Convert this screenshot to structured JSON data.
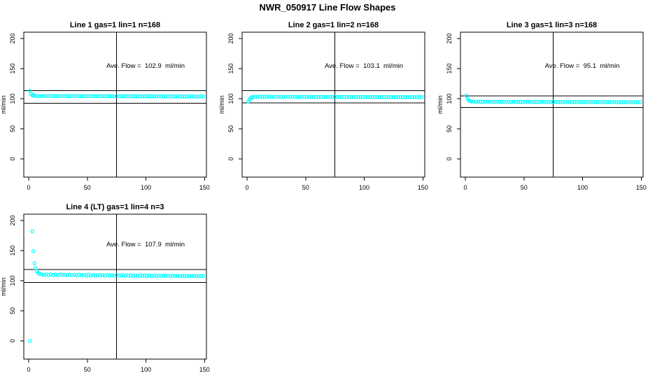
{
  "figure": {
    "title": "NWR_050917  Line Flow Shapes"
  },
  "style": {
    "point_color": "#00FFFF",
    "axis_color": "#000000",
    "background": "#FFFFFF"
  },
  "chart_data": [
    {
      "type": "scatter",
      "title": "Line 1 gas=1 lin=1 n=168",
      "gas": 1,
      "lin": 1,
      "n": 168,
      "annotation": "Ave. Flow =  102.9  ml/min",
      "ave_flow_ml_min": 102.9,
      "ylabel": "ml/min",
      "x_ticks": [
        0,
        50,
        100,
        150
      ],
      "y_ticks": [
        0,
        50,
        100,
        150,
        200
      ],
      "xlim": [
        0,
        150
      ],
      "ylim": [
        0,
        200
      ],
      "grid": false,
      "legend": "none",
      "vline_x": 75,
      "hlines": [
        113.2,
        92.6
      ],
      "points": [
        [
          1,
          113
        ],
        [
          2,
          108
        ],
        [
          3,
          106
        ],
        [
          4,
          105.2
        ],
        [
          5,
          104.8
        ],
        [
          7,
          104.7
        ],
        [
          9,
          104.4
        ],
        [
          11,
          104.5
        ],
        [
          13,
          104.3
        ],
        [
          15,
          104.6
        ],
        [
          17,
          104.5
        ],
        [
          19,
          104.6
        ],
        [
          21,
          104.3
        ],
        [
          23,
          104.4
        ],
        [
          25,
          104.2
        ],
        [
          27,
          104.5
        ],
        [
          29,
          104.4
        ],
        [
          31,
          104.5
        ],
        [
          33,
          104.2
        ],
        [
          35,
          104.4
        ],
        [
          37,
          104.1
        ],
        [
          39,
          104.5
        ],
        [
          41,
          104.3
        ],
        [
          43,
          104.5
        ],
        [
          45,
          104.2
        ],
        [
          47,
          104.3
        ],
        [
          49,
          104.1
        ],
        [
          51,
          104.4
        ],
        [
          53,
          104.3
        ],
        [
          55,
          104.4
        ],
        [
          57,
          104.1
        ],
        [
          59,
          104.2
        ],
        [
          61,
          104.0
        ],
        [
          63,
          104.3
        ],
        [
          65,
          104.2
        ],
        [
          67,
          104.3
        ],
        [
          69,
          104.0
        ],
        [
          71,
          104.2
        ],
        [
          73,
          103.9
        ],
        [
          75,
          104.3
        ],
        [
          77,
          104.1
        ],
        [
          79,
          104.2
        ],
        [
          81,
          104.0
        ],
        [
          83,
          104.1
        ],
        [
          85,
          103.9
        ],
        [
          87,
          104.2
        ],
        [
          89,
          104.0
        ],
        [
          91,
          104.1
        ],
        [
          93,
          103.9
        ],
        [
          95,
          104.0
        ],
        [
          97,
          103.8
        ],
        [
          99,
          104.1
        ],
        [
          101,
          104.0
        ],
        [
          103,
          104.0
        ],
        [
          105,
          103.8
        ],
        [
          107,
          103.9
        ],
        [
          109,
          103.7
        ],
        [
          111,
          104.0
        ],
        [
          113,
          103.9
        ],
        [
          115,
          103.9
        ],
        [
          117,
          103.7
        ],
        [
          119,
          103.8
        ],
        [
          121,
          103.6
        ],
        [
          123,
          103.9
        ],
        [
          125,
          103.8
        ],
        [
          127,
          103.8
        ],
        [
          129,
          103.6
        ],
        [
          131,
          103.7
        ],
        [
          133,
          103.5
        ],
        [
          135,
          103.8
        ],
        [
          137,
          103.7
        ],
        [
          139,
          103.7
        ],
        [
          141,
          103.5
        ],
        [
          143,
          103.6
        ],
        [
          145,
          103.6
        ],
        [
          147,
          103.7
        ],
        [
          149,
          103.6
        ]
      ]
    },
    {
      "type": "scatter",
      "title": "Line 2 gas=1 lin=2 n=168",
      "gas": 1,
      "lin": 2,
      "n": 168,
      "annotation": "Ave. Flow =  103.1  ml/min",
      "ave_flow_ml_min": 103.1,
      "ylabel": "ml/min",
      "x_ticks": [
        0,
        50,
        100,
        150
      ],
      "y_ticks": [
        0,
        50,
        100,
        150,
        200
      ],
      "xlim": [
        0,
        150
      ],
      "ylim": [
        0,
        200
      ],
      "grid": false,
      "legend": "none",
      "vline_x": 75,
      "hlines": [
        113.4,
        92.8
      ],
      "points": [
        [
          1,
          95.0
        ],
        [
          2,
          98.5
        ],
        [
          3,
          100.8
        ],
        [
          4,
          102.0
        ],
        [
          5,
          102.8
        ],
        [
          7,
          103.3
        ],
        [
          9,
          103.1
        ],
        [
          11,
          103.4
        ],
        [
          13,
          103.0
        ],
        [
          15,
          103.3
        ],
        [
          17,
          103.2
        ],
        [
          19,
          103.4
        ],
        [
          21,
          103.1
        ],
        [
          23,
          103.2
        ],
        [
          25,
          103.0
        ],
        [
          27,
          103.3
        ],
        [
          29,
          103.2
        ],
        [
          31,
          103.3
        ],
        [
          33,
          103.0
        ],
        [
          35,
          103.2
        ],
        [
          37,
          103.0
        ],
        [
          39,
          103.3
        ],
        [
          41,
          103.1
        ],
        [
          43,
          103.3
        ],
        [
          45,
          103.0
        ],
        [
          47,
          103.1
        ],
        [
          49,
          102.9
        ],
        [
          51,
          103.2
        ],
        [
          53,
          103.1
        ],
        [
          55,
          103.2
        ],
        [
          57,
          102.9
        ],
        [
          59,
          103.0
        ],
        [
          61,
          102.8
        ],
        [
          63,
          103.1
        ],
        [
          65,
          103.0
        ],
        [
          67,
          103.1
        ],
        [
          69,
          102.9
        ],
        [
          71,
          103.0
        ],
        [
          73,
          102.8
        ],
        [
          75,
          103.1
        ],
        [
          77,
          103.0
        ],
        [
          79,
          103.1
        ],
        [
          81,
          102.9
        ],
        [
          83,
          103.0
        ],
        [
          85,
          102.8
        ],
        [
          87,
          103.1
        ],
        [
          89,
          102.9
        ],
        [
          91,
          103.0
        ],
        [
          93,
          102.8
        ],
        [
          95,
          102.9
        ],
        [
          97,
          102.7
        ],
        [
          99,
          103.0
        ],
        [
          101,
          102.9
        ],
        [
          103,
          102.9
        ],
        [
          105,
          102.7
        ],
        [
          107,
          102.8
        ],
        [
          109,
          102.7
        ],
        [
          111,
          102.9
        ],
        [
          113,
          102.8
        ],
        [
          115,
          102.9
        ],
        [
          117,
          102.7
        ],
        [
          119,
          102.8
        ],
        [
          121,
          102.6
        ],
        [
          123,
          102.9
        ],
        [
          125,
          102.8
        ],
        [
          127,
          102.8
        ],
        [
          129,
          102.6
        ],
        [
          131,
          102.7
        ],
        [
          133,
          102.6
        ],
        [
          135,
          102.8
        ],
        [
          137,
          102.7
        ],
        [
          139,
          102.7
        ],
        [
          141,
          102.6
        ],
        [
          143,
          102.7
        ],
        [
          145,
          102.6
        ],
        [
          147,
          102.7
        ],
        [
          149,
          102.7
        ]
      ]
    },
    {
      "type": "scatter",
      "title": "Line 3 gas=1 lin=3 n=168",
      "gas": 1,
      "lin": 3,
      "n": 168,
      "annotation": "Ave. Flow =  95.1  ml/min",
      "ave_flow_ml_min": 95.1,
      "ylabel": "ml/min",
      "x_ticks": [
        0,
        50,
        100,
        150
      ],
      "y_ticks": [
        0,
        50,
        100,
        150,
        200
      ],
      "xlim": [
        0,
        150
      ],
      "ylim": [
        0,
        200
      ],
      "grid": false,
      "legend": "none",
      "vline_x": 75,
      "hlines": [
        104.6,
        85.6
      ],
      "points": [
        [
          1,
          105.5
        ],
        [
          2,
          99.5
        ],
        [
          3,
          97.0
        ],
        [
          4,
          96.0
        ],
        [
          5,
          95.4
        ],
        [
          7,
          95.2
        ],
        [
          9,
          94.9
        ],
        [
          11,
          95.1
        ],
        [
          13,
          94.8
        ],
        [
          15,
          95.1
        ],
        [
          17,
          95.0
        ],
        [
          19,
          95.1
        ],
        [
          21,
          94.8
        ],
        [
          23,
          95.0
        ],
        [
          25,
          94.7
        ],
        [
          27,
          95.0
        ],
        [
          29,
          94.9
        ],
        [
          31,
          95.0
        ],
        [
          33,
          94.7
        ],
        [
          35,
          94.9
        ],
        [
          37,
          94.7
        ],
        [
          39,
          95.0
        ],
        [
          41,
          94.8
        ],
        [
          43,
          94.9
        ],
        [
          45,
          94.7
        ],
        [
          47,
          94.8
        ],
        [
          49,
          94.6
        ],
        [
          51,
          94.9
        ],
        [
          53,
          94.8
        ],
        [
          55,
          94.9
        ],
        [
          57,
          94.6
        ],
        [
          59,
          94.7
        ],
        [
          61,
          94.5
        ],
        [
          63,
          94.8
        ],
        [
          65,
          94.7
        ],
        [
          67,
          94.8
        ],
        [
          69,
          94.6
        ],
        [
          71,
          94.7
        ],
        [
          73,
          94.5
        ],
        [
          75,
          94.8
        ],
        [
          77,
          94.6
        ],
        [
          79,
          94.7
        ],
        [
          81,
          94.5
        ],
        [
          83,
          94.6
        ],
        [
          85,
          94.4
        ],
        [
          87,
          94.7
        ],
        [
          89,
          94.5
        ],
        [
          91,
          94.6
        ],
        [
          93,
          94.4
        ],
        [
          95,
          94.5
        ],
        [
          97,
          94.4
        ],
        [
          99,
          94.6
        ],
        [
          101,
          94.5
        ],
        [
          103,
          94.5
        ],
        [
          105,
          94.3
        ],
        [
          107,
          94.4
        ],
        [
          109,
          94.3
        ],
        [
          111,
          94.5
        ],
        [
          113,
          94.4
        ],
        [
          115,
          94.5
        ],
        [
          117,
          94.3
        ],
        [
          119,
          94.4
        ],
        [
          121,
          94.2
        ],
        [
          123,
          94.5
        ],
        [
          125,
          94.4
        ],
        [
          127,
          94.4
        ],
        [
          129,
          94.2
        ],
        [
          131,
          94.3
        ],
        [
          133,
          94.2
        ],
        [
          135,
          94.4
        ],
        [
          137,
          94.3
        ],
        [
          139,
          94.3
        ],
        [
          141,
          94.2
        ],
        [
          143,
          94.3
        ],
        [
          145,
          94.2
        ],
        [
          147,
          94.3
        ],
        [
          149,
          94.3
        ]
      ]
    },
    {
      "type": "scatter",
      "title": "Line 4 (LT) gas=1 lin=4 n=3",
      "gas": 1,
      "lin": 4,
      "n": 3,
      "annotation": "Ave. Flow =  107.9  ml/min",
      "ave_flow_ml_min": 107.9,
      "ylabel": "ml/min",
      "x_ticks": [
        0,
        50,
        100,
        150
      ],
      "y_ticks": [
        0,
        50,
        100,
        150,
        200
      ],
      "xlim": [
        0,
        150
      ],
      "ylim": [
        0,
        200
      ],
      "grid": false,
      "legend": "none",
      "vline_x": 75,
      "hlines": [
        118.7,
        97.1
      ],
      "points": [
        [
          1,
          0
        ],
        [
          3,
          182
        ],
        [
          4,
          149
        ],
        [
          5,
          129
        ],
        [
          6,
          120.5
        ],
        [
          7,
          116
        ],
        [
          8,
          113
        ],
        [
          9,
          111.5
        ],
        [
          11,
          110.8
        ],
        [
          13,
          109.6
        ],
        [
          15,
          110.4
        ],
        [
          17,
          109.2
        ],
        [
          19,
          110.6
        ],
        [
          21,
          109.8
        ],
        [
          23,
          110.2
        ],
        [
          25,
          109.0
        ],
        [
          27,
          110.5
        ],
        [
          29,
          109.5
        ],
        [
          31,
          110.0
        ],
        [
          33,
          108.8
        ],
        [
          35,
          110.2
        ],
        [
          37,
          109.3
        ],
        [
          39,
          109.9
        ],
        [
          41,
          108.7
        ],
        [
          43,
          110.0
        ],
        [
          45,
          109.1
        ],
        [
          47,
          109.7
        ],
        [
          49,
          108.6
        ],
        [
          51,
          109.8
        ],
        [
          53,
          108.9
        ],
        [
          55,
          109.5
        ],
        [
          57,
          108.4
        ],
        [
          59,
          109.6
        ],
        [
          61,
          108.8
        ],
        [
          63,
          109.3
        ],
        [
          65,
          108.3
        ],
        [
          67,
          109.5
        ],
        [
          69,
          108.6
        ],
        [
          71,
          109.1
        ],
        [
          73,
          108.2
        ],
        [
          75,
          109.3
        ],
        [
          77,
          108.5
        ],
        [
          79,
          109.0
        ],
        [
          81,
          108.0
        ],
        [
          83,
          109.2
        ],
        [
          85,
          108.3
        ],
        [
          87,
          108.8
        ],
        [
          89,
          107.9
        ],
        [
          91,
          109.0
        ],
        [
          93,
          108.2
        ],
        [
          95,
          108.7
        ],
        [
          97,
          107.8
        ],
        [
          99,
          108.9
        ],
        [
          101,
          108.1
        ],
        [
          103,
          108.5
        ],
        [
          105,
          107.7
        ],
        [
          107,
          108.8
        ],
        [
          109,
          108.0
        ],
        [
          111,
          108.4
        ],
        [
          113,
          107.6
        ],
        [
          115,
          108.7
        ],
        [
          117,
          107.9
        ],
        [
          119,
          108.3
        ],
        [
          121,
          107.5
        ],
        [
          123,
          108.5
        ],
        [
          125,
          107.8
        ],
        [
          127,
          108.2
        ],
        [
          129,
          107.4
        ],
        [
          131,
          108.4
        ],
        [
          133,
          107.7
        ],
        [
          135,
          108.0
        ],
        [
          137,
          107.3
        ],
        [
          139,
          108.2
        ],
        [
          141,
          107.6
        ],
        [
          143,
          107.9
        ],
        [
          145,
          107.3
        ],
        [
          147,
          108.0
        ],
        [
          149,
          107.6
        ]
      ]
    }
  ]
}
